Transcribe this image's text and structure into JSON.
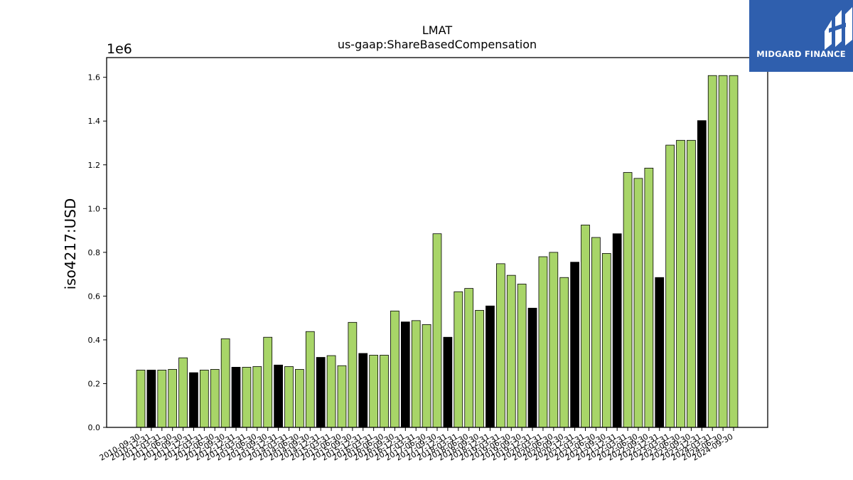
{
  "brand": {
    "name": "MIDGARD FINANCE",
    "logo_icon": "midgard-logo-icon",
    "background": "#2f5fae"
  },
  "chart_data": {
    "type": "bar",
    "title": "LMAT",
    "subtitle": "us-gaap:ShareBasedCompensation",
    "ylabel": "iso4217:USD",
    "y_offset_label": "1e6",
    "ylim": [
      0,
      1.69
    ],
    "yticks": [
      "0.0",
      "0.2",
      "0.4",
      "0.6",
      "0.8",
      "1.0",
      "1.2",
      "1.4",
      "1.6"
    ],
    "colors": {
      "q": "#a8d568",
      "fy": "#000000",
      "edge": "#000000"
    },
    "categories": [
      "2010-09-30",
      "2010-12-31",
      "2011-03-31",
      "2011-06-30",
      "2011-09-30",
      "2011-12-31",
      "2012-03-31",
      "2012-06-30",
      "2012-09-30",
      "2012-12-31",
      "2013-03-31",
      "2013-06-30",
      "2013-09-30",
      "2013-12-31",
      "2014-03-31",
      "2014-06-30",
      "2014-09-30",
      "2014-12-31",
      "2015-03-31",
      "2015-06-30",
      "2015-09-30",
      "2015-12-31",
      "2016-03-31",
      "2016-06-30",
      "2016-09-30",
      "2016-12-31",
      "2017-03-31",
      "2017-06-30",
      "2017-09-30",
      "2017-12-31",
      "2018-03-31",
      "2018-06-30",
      "2018-09-30",
      "2018-12-31",
      "2019-03-31",
      "2019-06-30",
      "2019-09-30",
      "2019-12-31",
      "2020-03-31",
      "2020-06-30",
      "2020-09-30",
      "2020-12-31",
      "2021-03-31",
      "2021-06-30",
      "2021-09-30",
      "2021-12-31",
      "2022-03-31",
      "2022-06-30",
      "2022-09-30",
      "2022-12-31",
      "2023-03-31",
      "2023-06-30",
      "2023-09-30",
      "2023-12-31",
      "2024-03-31",
      "2024-06-30",
      "2024-09-30"
    ],
    "values": [
      0.262,
      0.262,
      0.262,
      0.265,
      0.318,
      0.25,
      0.262,
      0.265,
      0.405,
      0.275,
      0.275,
      0.278,
      0.412,
      0.285,
      0.278,
      0.265,
      0.438,
      0.32,
      0.328,
      0.282,
      0.48,
      0.338,
      0.33,
      0.33,
      0.532,
      0.482,
      0.488,
      0.47,
      0.885,
      0.412,
      0.62,
      0.635,
      0.535,
      0.555,
      0.748,
      0.695,
      0.655,
      0.545,
      0.78,
      0.8,
      0.685,
      0.755,
      0.925,
      0.868,
      0.795,
      0.885,
      1.165,
      1.138,
      1.185,
      0.685,
      1.29,
      1.312,
      1.312,
      1.402,
      1.608,
      1.608,
      1.608
    ],
    "highlight": [
      false,
      true,
      false,
      false,
      false,
      true,
      false,
      false,
      false,
      true,
      false,
      false,
      false,
      true,
      false,
      false,
      false,
      true,
      false,
      false,
      false,
      true,
      false,
      false,
      false,
      true,
      false,
      false,
      false,
      true,
      false,
      false,
      false,
      true,
      false,
      false,
      false,
      true,
      false,
      false,
      false,
      true,
      false,
      false,
      false,
      true,
      false,
      false,
      false,
      true,
      false,
      false,
      false,
      true,
      false,
      false,
      false
    ]
  }
}
